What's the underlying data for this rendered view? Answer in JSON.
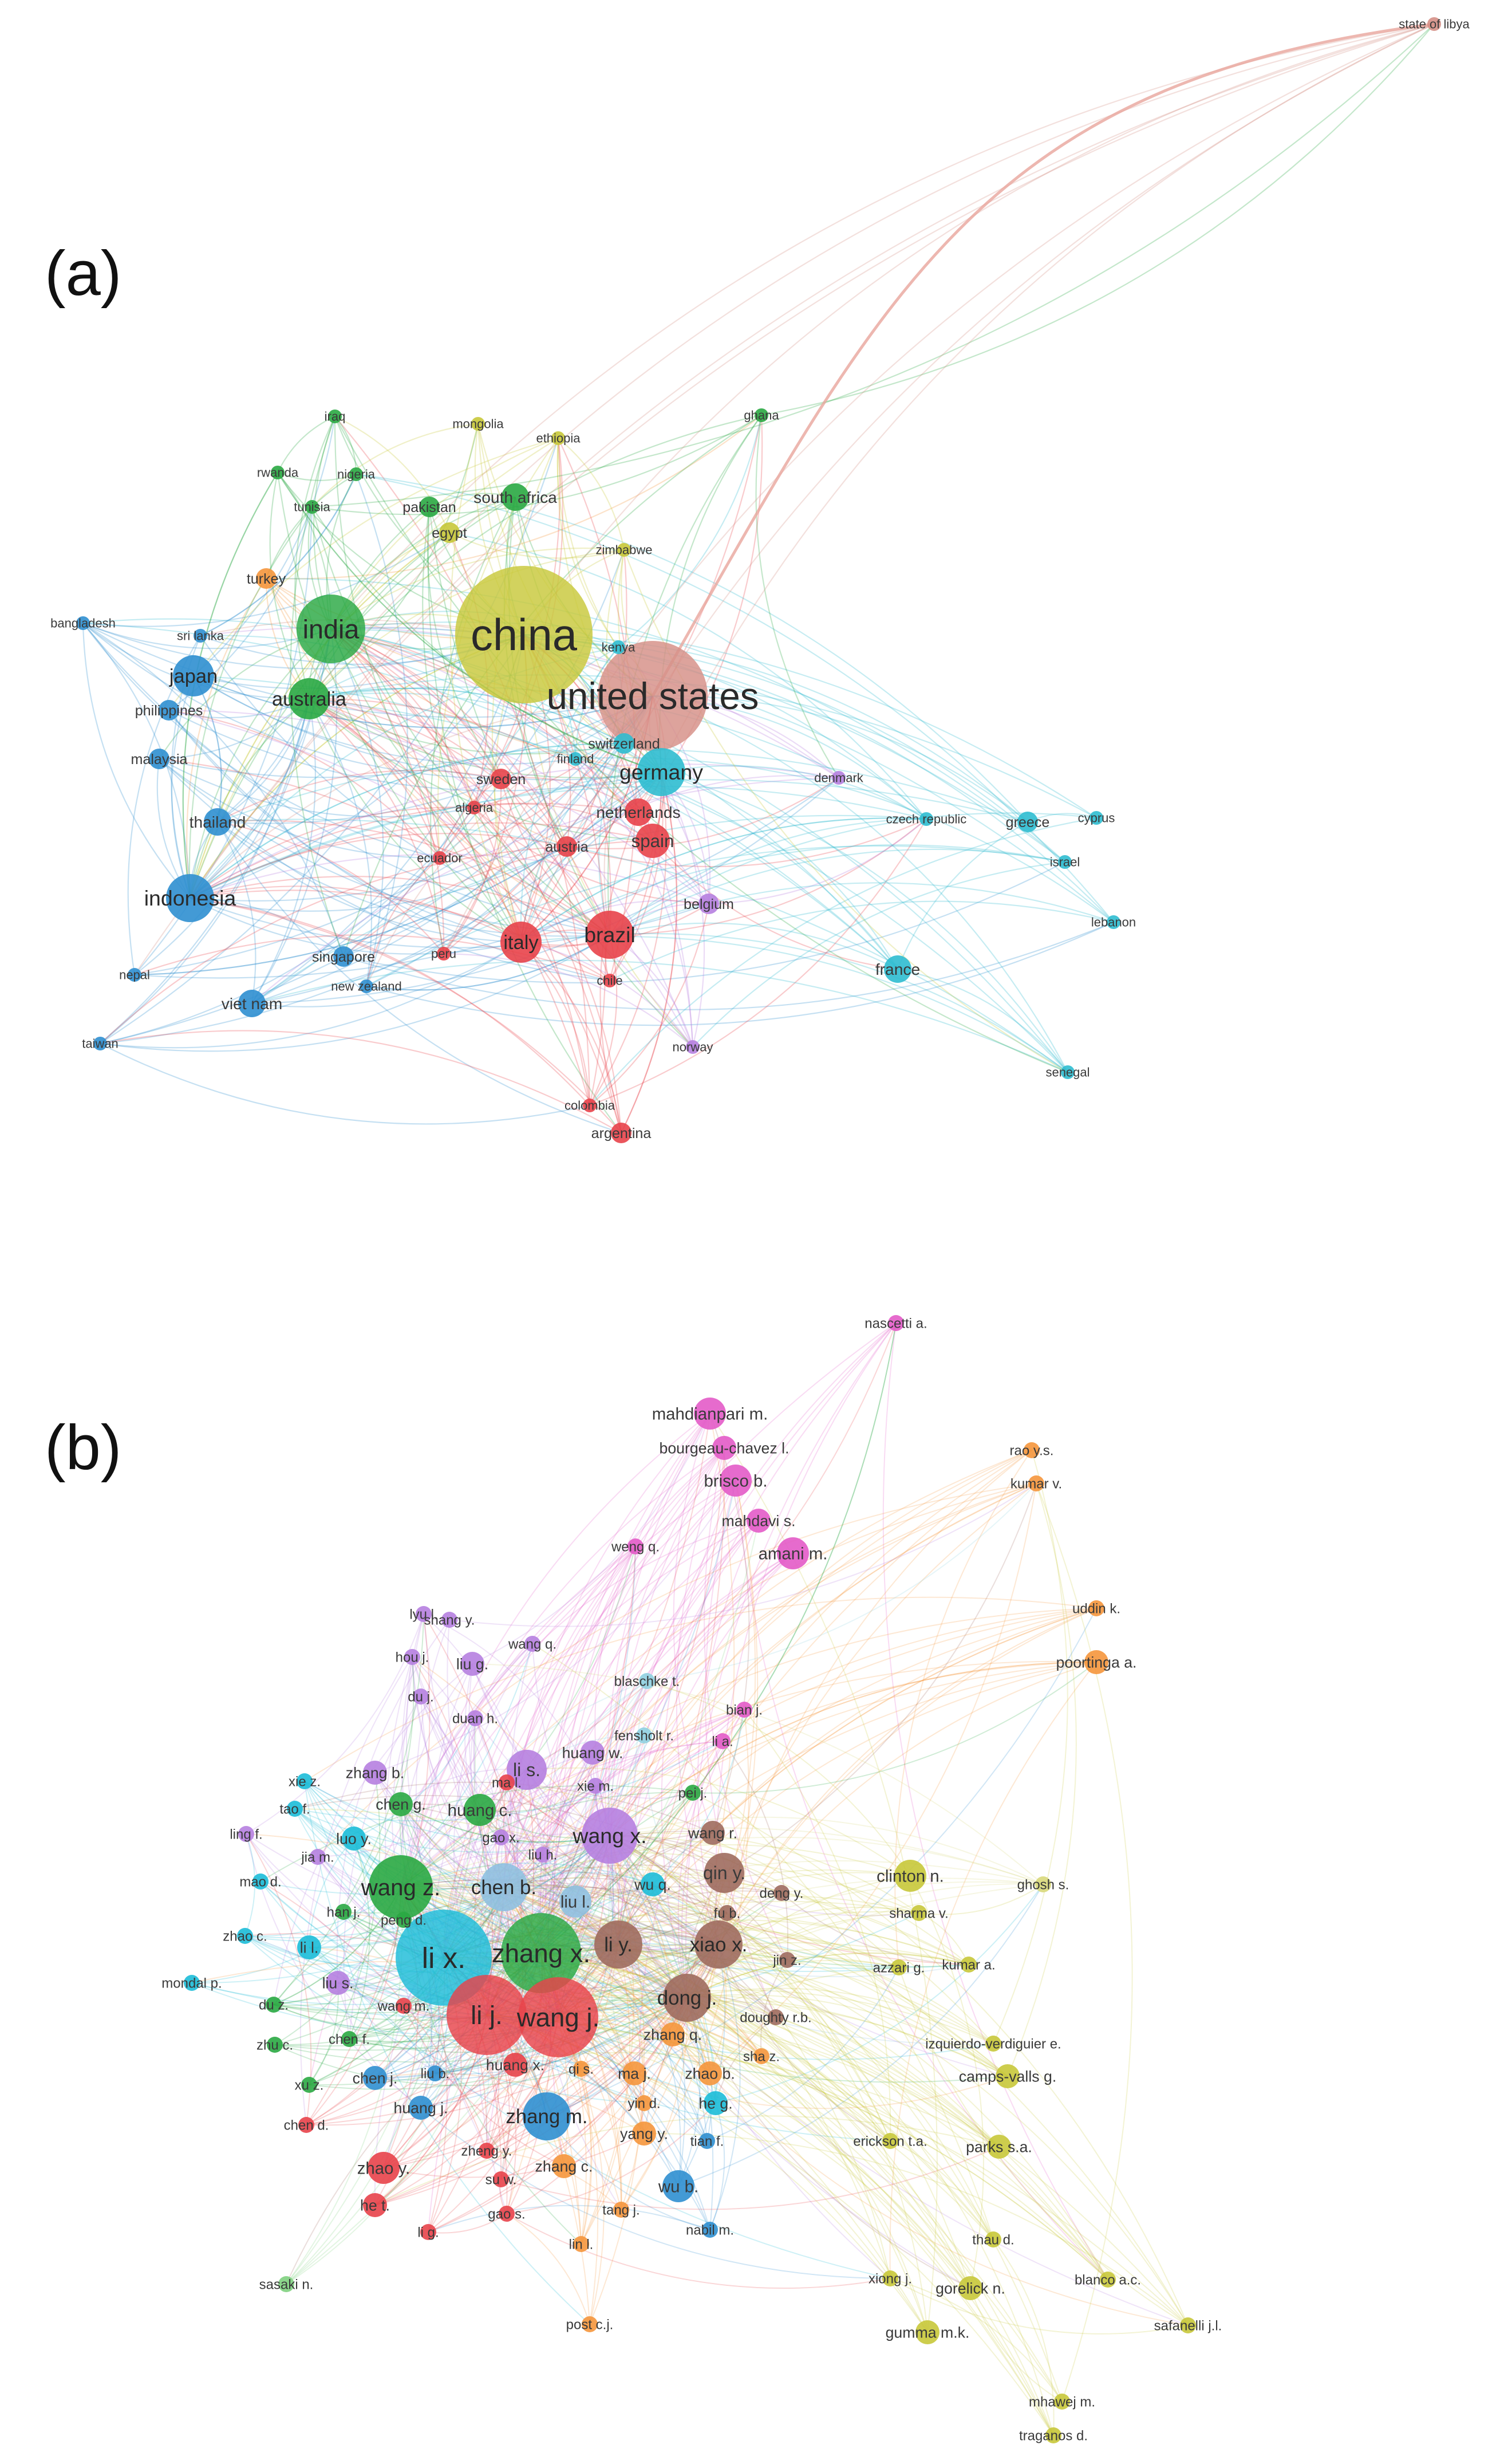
{
  "panels": [
    {
      "label": "(a)",
      "nodes": [
        {
          "label": "china",
          "color": "#c8c83a",
          "weight": 10
        },
        {
          "label": "united states",
          "color": "#d58f86",
          "weight": 8
        },
        {
          "label": "india",
          "color": "#2aa843",
          "weight": 5
        },
        {
          "label": "australia",
          "color": "#2aa843",
          "weight": 3
        },
        {
          "label": "germany",
          "color": "#2fbcd0",
          "weight": 3.5
        },
        {
          "label": "indonesia",
          "color": "#2f8fd0",
          "weight": 3.5
        },
        {
          "label": "brazil",
          "color": "#e8434a",
          "weight": 3.5
        },
        {
          "label": "italy",
          "color": "#e8434a",
          "weight": 3
        },
        {
          "label": "japan",
          "color": "#2f8fd0",
          "weight": 3
        },
        {
          "label": "spain",
          "color": "#e8434a",
          "weight": 2.5
        },
        {
          "label": "netherlands",
          "color": "#e8434a",
          "weight": 2
        },
        {
          "label": "switzerland",
          "color": "#2fbcd0",
          "weight": 1.5
        },
        {
          "label": "france",
          "color": "#2fbcd0",
          "weight": 2
        },
        {
          "label": "south africa",
          "color": "#2aa843",
          "weight": 2
        },
        {
          "label": "pakistan",
          "color": "#2aa843",
          "weight": 1.5
        },
        {
          "label": "egypt",
          "color": "#c8c83a",
          "weight": 1.5
        },
        {
          "label": "turkey",
          "color": "#f5963c",
          "weight": 1.5
        },
        {
          "label": "thailand",
          "color": "#2f8fd0",
          "weight": 2
        },
        {
          "label": "viet nam",
          "color": "#2f8fd0",
          "weight": 2
        },
        {
          "label": "malaysia",
          "color": "#2f8fd0",
          "weight": 1.5
        },
        {
          "label": "philippines",
          "color": "#2f8fd0",
          "weight": 1.5
        },
        {
          "label": "sri lanka",
          "color": "#2f8fd0",
          "weight": 1
        },
        {
          "label": "bangladesh",
          "color": "#2f8fd0",
          "weight": 1
        },
        {
          "label": "nepal",
          "color": "#2f8fd0",
          "weight": 1
        },
        {
          "label": "taiwan",
          "color": "#2f8fd0",
          "weight": 1
        },
        {
          "label": "singapore",
          "color": "#2f8fd0",
          "weight": 1.5
        },
        {
          "label": "new zealand",
          "color": "#2f8fd0",
          "weight": 1
        },
        {
          "label": "peru",
          "color": "#e8434a",
          "weight": 1
        },
        {
          "label": "chile",
          "color": "#e8434a",
          "weight": 1
        },
        {
          "label": "colombia",
          "color": "#e8434a",
          "weight": 1
        },
        {
          "label": "argentina",
          "color": "#e8434a",
          "weight": 1.5
        },
        {
          "label": "ecuador",
          "color": "#e8434a",
          "weight": 1
        },
        {
          "label": "austria",
          "color": "#e8434a",
          "weight": 1.5
        },
        {
          "label": "algeria",
          "color": "#e8434a",
          "weight": 1
        },
        {
          "label": "sweden",
          "color": "#e8434a",
          "weight": 1.5
        },
        {
          "label": "finland",
          "color": "#2fbcd0",
          "weight": 1
        },
        {
          "label": "kenya",
          "color": "#2fbcd0",
          "weight": 1
        },
        {
          "label": "denmark",
          "color": "#b67fe0",
          "weight": 1
        },
        {
          "label": "belgium",
          "color": "#b67fe0",
          "weight": 1.5
        },
        {
          "label": "norway",
          "color": "#b67fe0",
          "weight": 1
        },
        {
          "label": "czech republic",
          "color": "#2fbcd0",
          "weight": 1
        },
        {
          "label": "greece",
          "color": "#2fbcd0",
          "weight": 1.5
        },
        {
          "label": "cyprus",
          "color": "#2fbcd0",
          "weight": 1
        },
        {
          "label": "israel",
          "color": "#2fbcd0",
          "weight": 1
        },
        {
          "label": "lebanon",
          "color": "#2fbcd0",
          "weight": 1
        },
        {
          "label": "senegal",
          "color": "#2fbcd0",
          "weight": 1
        },
        {
          "label": "iraq",
          "color": "#2aa843",
          "weight": 1
        },
        {
          "label": "mongolia",
          "color": "#c8c83a",
          "weight": 1
        },
        {
          "label": "ethiopia",
          "color": "#c8c83a",
          "weight": 1
        },
        {
          "label": "ghana",
          "color": "#2aa843",
          "weight": 1
        },
        {
          "label": "rwanda",
          "color": "#2aa843",
          "weight": 1
        },
        {
          "label": "nigeria",
          "color": "#2aa843",
          "weight": 1
        },
        {
          "label": "tunisia",
          "color": "#2aa843",
          "weight": 1
        },
        {
          "label": "zimbabwe",
          "color": "#c8c83a",
          "weight": 1
        },
        {
          "label": "state of libya",
          "color": "#d58f86",
          "weight": 1
        }
      ]
    },
    {
      "label": "(b)",
      "nodes": [
        {
          "label": "nascetti a.",
          "color": "#e35bc8",
          "weight": 1
        },
        {
          "label": "mahdianpari m.",
          "color": "#e35bc8",
          "weight": 2
        },
        {
          "label": "bourgeau-chavez l.",
          "color": "#e35bc8",
          "weight": 1.5
        },
        {
          "label": "brisco b.",
          "color": "#e35bc8",
          "weight": 2
        },
        {
          "label": "mahdavi s.",
          "color": "#e35bc8",
          "weight": 1.5
        },
        {
          "label": "amani m.",
          "color": "#e35bc8",
          "weight": 2
        },
        {
          "label": "weng q.",
          "color": "#e35bc8",
          "weight": 1
        },
        {
          "label": "rao y.s.",
          "color": "#f5963c",
          "weight": 1
        },
        {
          "label": "kumar v.",
          "color": "#f5963c",
          "weight": 1
        },
        {
          "label": "uddin k.",
          "color": "#f5963c",
          "weight": 1
        },
        {
          "label": "poortinga a.",
          "color": "#f5963c",
          "weight": 1.5
        },
        {
          "label": "lyu l.",
          "color": "#b67fe0",
          "weight": 1
        },
        {
          "label": "shang y.",
          "color": "#b67fe0",
          "weight": 1
        },
        {
          "label": "wang q.",
          "color": "#b67fe0",
          "weight": 1
        },
        {
          "label": "hou j.",
          "color": "#b67fe0",
          "weight": 1
        },
        {
          "label": "liu g.",
          "color": "#b67fe0",
          "weight": 1.5
        },
        {
          "label": "du j.",
          "color": "#b67fe0",
          "weight": 1
        },
        {
          "label": "blaschke t.",
          "color": "#8fd0e0",
          "weight": 1
        },
        {
          "label": "fensholt r.",
          "color": "#8fd0e0",
          "weight": 1
        },
        {
          "label": "bian j.",
          "color": "#e35bc8",
          "weight": 1
        },
        {
          "label": "li a.",
          "color": "#e35bc8",
          "weight": 1
        },
        {
          "label": "duan h.",
          "color": "#b67fe0",
          "weight": 1
        },
        {
          "label": "huang w.",
          "color": "#b67fe0",
          "weight": 1.5
        },
        {
          "label": "zhang b.",
          "color": "#b67fe0",
          "weight": 1.5
        },
        {
          "label": "li s.",
          "color": "#b67fe0",
          "weight": 2.5
        },
        {
          "label": "xie m.",
          "color": "#b67fe0",
          "weight": 1
        },
        {
          "label": "ma l.",
          "color": "#e8434a",
          "weight": 1
        },
        {
          "label": "pei j.",
          "color": "#2aa843",
          "weight": 1
        },
        {
          "label": "chen g.",
          "color": "#2aa843",
          "weight": 1.5
        },
        {
          "label": "huang c.",
          "color": "#2aa843",
          "weight": 2
        },
        {
          "label": "tao f.",
          "color": "#1cbcd8",
          "weight": 1
        },
        {
          "label": "xie z.",
          "color": "#1cbcd8",
          "weight": 1
        },
        {
          "label": "ling f.",
          "color": "#b67fe0",
          "weight": 1
        },
        {
          "label": "luo y.",
          "color": "#1cbcd8",
          "weight": 1.5
        },
        {
          "label": "gao x.",
          "color": "#b67fe0",
          "weight": 1
        },
        {
          "label": "wang x.",
          "color": "#b67fe0",
          "weight": 3.5
        },
        {
          "label": "wang r.",
          "color": "#9e6b5e",
          "weight": 1.5
        },
        {
          "label": "jia m.",
          "color": "#b67fe0",
          "weight": 1
        },
        {
          "label": "liu h.",
          "color": "#b67fe0",
          "weight": 1
        },
        {
          "label": "qin y.",
          "color": "#9e6b5e",
          "weight": 2.5
        },
        {
          "label": "clinton n.",
          "color": "#c8c83a",
          "weight": 2
        },
        {
          "label": "ghosh s.",
          "color": "#d8d87a",
          "weight": 1
        },
        {
          "label": "mao d.",
          "color": "#1cbcd8",
          "weight": 1
        },
        {
          "label": "wang z.",
          "color": "#2aa843",
          "weight": 4
        },
        {
          "label": "chen b.",
          "color": "#8fc0e0",
          "weight": 3
        },
        {
          "label": "wu q.",
          "color": "#1cbcd8",
          "weight": 1.5
        },
        {
          "label": "deng y.",
          "color": "#9e6b5e",
          "weight": 1
        },
        {
          "label": "liu l.",
          "color": "#8fc0e0",
          "weight": 2
        },
        {
          "label": "peng d.",
          "color": "#2aa843",
          "weight": 1
        },
        {
          "label": "fu b.",
          "color": "#9e6b5e",
          "weight": 1
        },
        {
          "label": "han j.",
          "color": "#2aa843",
          "weight": 1
        },
        {
          "label": "zhao c.",
          "color": "#1cbcd8",
          "weight": 1
        },
        {
          "label": "sharma v.",
          "color": "#c8c83a",
          "weight": 1
        },
        {
          "label": "li x.",
          "color": "#1cbcd8",
          "weight": 6
        },
        {
          "label": "zhang x.",
          "color": "#2aa843",
          "weight": 5
        },
        {
          "label": "li y.",
          "color": "#9e6b5e",
          "weight": 3
        },
        {
          "label": "xiao x.",
          "color": "#9e6b5e",
          "weight": 3
        },
        {
          "label": "jin z.",
          "color": "#9e6b5e",
          "weight": 1
        },
        {
          "label": "azzari g.",
          "color": "#c8c83a",
          "weight": 1
        },
        {
          "label": "kumar a.",
          "color": "#c8c83a",
          "weight": 1
        },
        {
          "label": "li l.",
          "color": "#1cbcd8",
          "weight": 1.5
        },
        {
          "label": "mondal p.",
          "color": "#1cbcd8",
          "weight": 1
        },
        {
          "label": "liu s.",
          "color": "#b67fe0",
          "weight": 1.5
        },
        {
          "label": "du z.",
          "color": "#2aa843",
          "weight": 1
        },
        {
          "label": "wang m.",
          "color": "#e8434a",
          "weight": 1
        },
        {
          "label": "li j.",
          "color": "#e8434a",
          "weight": 5
        },
        {
          "label": "wang j.",
          "color": "#e8434a",
          "weight": 5
        },
        {
          "label": "dong j.",
          "color": "#9e6b5e",
          "weight": 3
        },
        {
          "label": "doughty r.b.",
          "color": "#9e6b5e",
          "weight": 1
        },
        {
          "label": "zhu c.",
          "color": "#2aa843",
          "weight": 1
        },
        {
          "label": "chen f.",
          "color": "#2aa843",
          "weight": 1
        },
        {
          "label": "zhang q.",
          "color": "#f5963c",
          "weight": 1.5
        },
        {
          "label": "izquierdo-verdiguier e.",
          "color": "#c8c83a",
          "weight": 1
        },
        {
          "label": "sha z.",
          "color": "#f5963c",
          "weight": 1
        },
        {
          "label": "xu z.",
          "color": "#2aa843",
          "weight": 1
        },
        {
          "label": "chen j.",
          "color": "#2f8fd0",
          "weight": 1.5
        },
        {
          "label": "liu b.",
          "color": "#2f8fd0",
          "weight": 1
        },
        {
          "label": "huang x.",
          "color": "#e8434a",
          "weight": 1.5
        },
        {
          "label": "qi s.",
          "color": "#f5963c",
          "weight": 1
        },
        {
          "label": "ma j.",
          "color": "#f5963c",
          "weight": 1.5
        },
        {
          "label": "zhao b.",
          "color": "#f5963c",
          "weight": 1.5
        },
        {
          "label": "camps-valls g.",
          "color": "#c8c83a",
          "weight": 1.5
        },
        {
          "label": "he g.",
          "color": "#1cbcd8",
          "weight": 1.5
        },
        {
          "label": "huang j.",
          "color": "#2f8fd0",
          "weight": 1.5
        },
        {
          "label": "zhang m.",
          "color": "#2f8fd0",
          "weight": 3
        },
        {
          "label": "yin d.",
          "color": "#f5963c",
          "weight": 1
        },
        {
          "label": "chen d.",
          "color": "#e8434a",
          "weight": 1
        },
        {
          "label": "yang y.",
          "color": "#f5963c",
          "weight": 1.5
        },
        {
          "label": "tian f.",
          "color": "#2f8fd0",
          "weight": 1
        },
        {
          "label": "erickson t.a.",
          "color": "#c8c83a",
          "weight": 1
        },
        {
          "label": "parks s.a.",
          "color": "#c8c83a",
          "weight": 1.5
        },
        {
          "label": "zheng y.",
          "color": "#e8434a",
          "weight": 1
        },
        {
          "label": "zhao y.",
          "color": "#e8434a",
          "weight": 2
        },
        {
          "label": "zhang c.",
          "color": "#f5963c",
          "weight": 1.5
        },
        {
          "label": "su w.",
          "color": "#e8434a",
          "weight": 1
        },
        {
          "label": "wu b.",
          "color": "#2f8fd0",
          "weight": 2
        },
        {
          "label": "he t.",
          "color": "#e8434a",
          "weight": 1.5
        },
        {
          "label": "gao s.",
          "color": "#e8434a",
          "weight": 1
        },
        {
          "label": "tang j.",
          "color": "#f5963c",
          "weight": 1
        },
        {
          "label": "nabil m.",
          "color": "#2f8fd0",
          "weight": 1
        },
        {
          "label": "li g.",
          "color": "#e8434a",
          "weight": 1
        },
        {
          "label": "lin l.",
          "color": "#f5963c",
          "weight": 1
        },
        {
          "label": "thau d.",
          "color": "#c8c83a",
          "weight": 1
        },
        {
          "label": "sasaki n.",
          "color": "#7fd07f",
          "weight": 1
        },
        {
          "label": "xiong j.",
          "color": "#c8c83a",
          "weight": 1
        },
        {
          "label": "gorelick n.",
          "color": "#c8c83a",
          "weight": 1.5
        },
        {
          "label": "blanco a.c.",
          "color": "#c8c83a",
          "weight": 1
        },
        {
          "label": "post c.j.",
          "color": "#f5963c",
          "weight": 1
        },
        {
          "label": "gumma m.k.",
          "color": "#c8c83a",
          "weight": 1.5
        },
        {
          "label": "safanelli j.l.",
          "color": "#c8c83a",
          "weight": 1
        },
        {
          "label": "mhawej m.",
          "color": "#c8c83a",
          "weight": 1
        },
        {
          "label": "traganos d.",
          "color": "#c8c83a",
          "weight": 1
        }
      ]
    }
  ]
}
